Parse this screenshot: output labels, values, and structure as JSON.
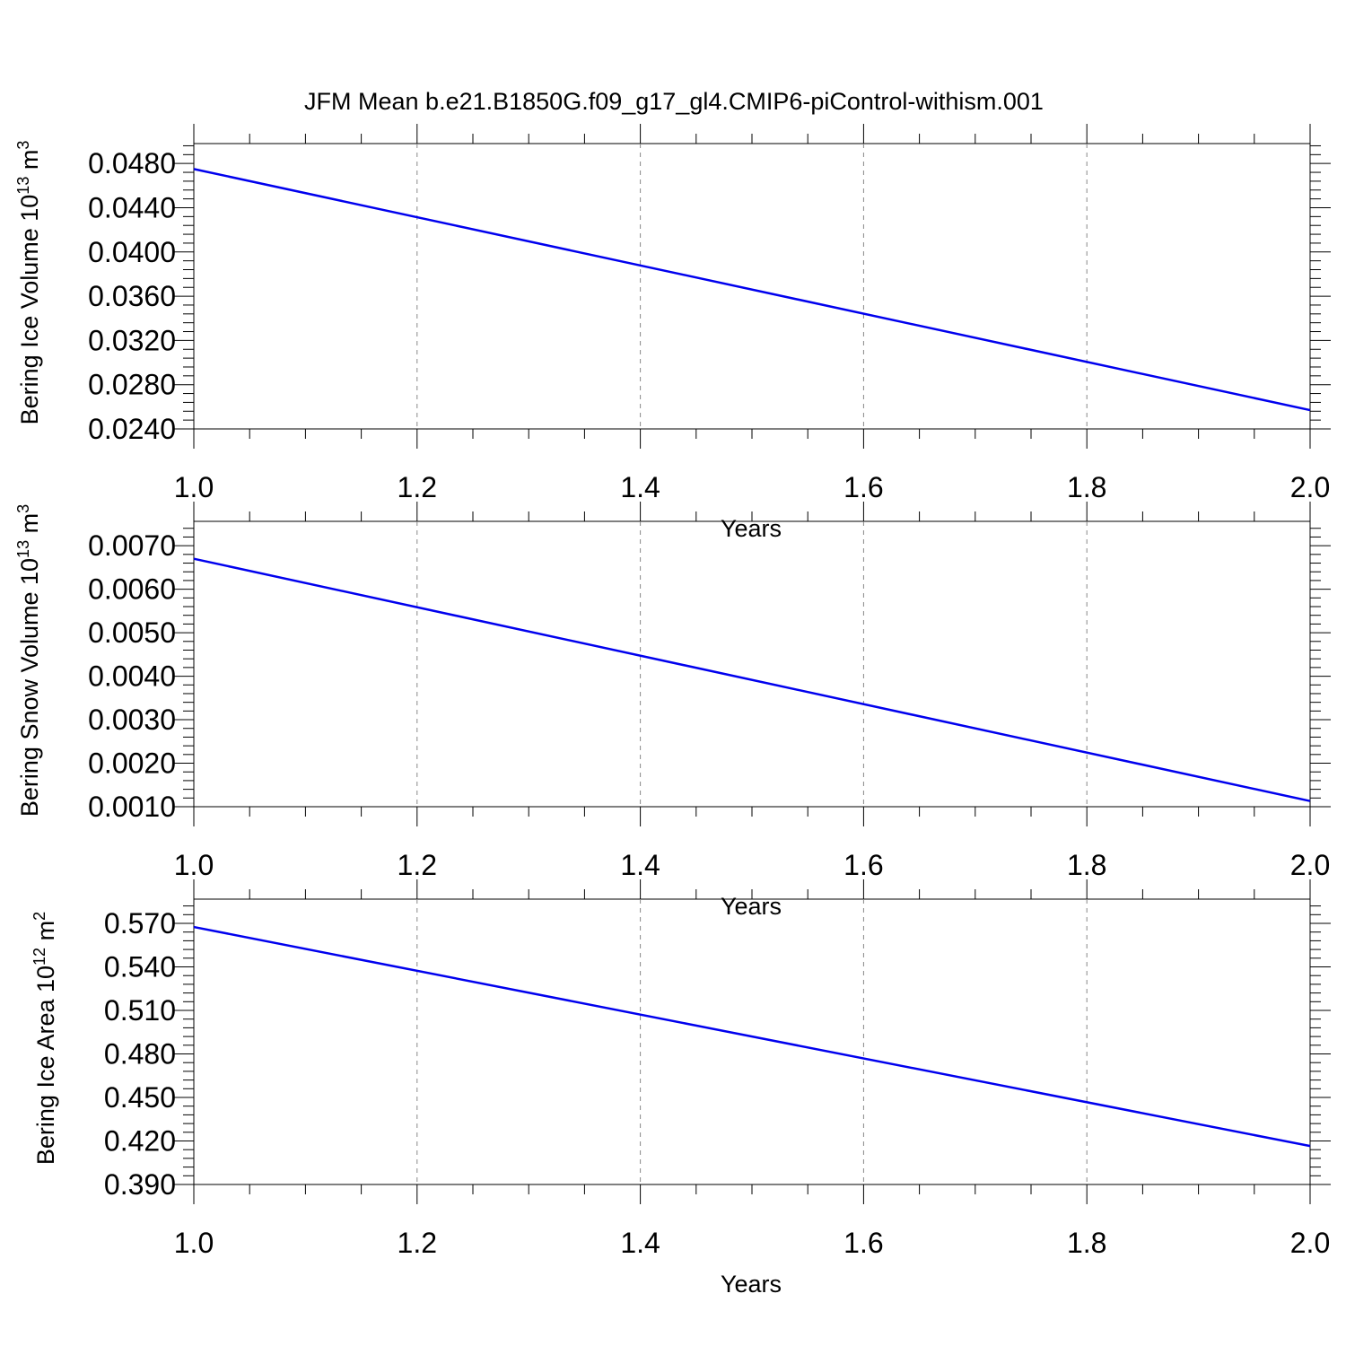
{
  "title": "JFM Mean b.e21.B1850G.f09_g17_gl4.CMIP6-piControl-withism.001",
  "colors": {
    "line": "#0000ee",
    "axis": "#000000",
    "grid": "#888888"
  },
  "chart_data": [
    {
      "type": "line",
      "ylabel": "Bering Ice Volume 10",
      "ylabel_exp": "13",
      "ylabel_unit": " m",
      "ylabel_unit_exp": "3",
      "xlabel": "Years",
      "xlim": [
        1.0,
        2.0
      ],
      "ylim": [
        0.024,
        0.0498
      ],
      "x_ticks": [
        "1.0",
        "1.2",
        "1.4",
        "1.6",
        "1.8",
        "2.0"
      ],
      "y_ticks": [
        "0.0240",
        "0.0280",
        "0.0320",
        "0.0360",
        "0.0400",
        "0.0440",
        "0.0480"
      ],
      "x_grid": "dashed vertical",
      "series": [
        {
          "x": [
            1.0,
            2.0
          ],
          "y": [
            0.0475,
            0.0257
          ]
        }
      ]
    },
    {
      "type": "line",
      "ylabel": "Bering Snow Volume 10",
      "ylabel_exp": "13",
      "ylabel_unit": " m",
      "ylabel_unit_exp": "3",
      "xlabel": "Years",
      "xlim": [
        1.0,
        2.0
      ],
      "ylim": [
        0.001,
        0.00756
      ],
      "x_ticks": [
        "1.0",
        "1.2",
        "1.4",
        "1.6",
        "1.8",
        "2.0"
      ],
      "y_ticks": [
        "0.0010",
        "0.0020",
        "0.0030",
        "0.0040",
        "0.0050",
        "0.0060",
        "0.0070"
      ],
      "x_grid": "dashed vertical",
      "series": [
        {
          "x": [
            1.0,
            2.0
          ],
          "y": [
            0.0067,
            0.00113
          ]
        }
      ]
    },
    {
      "type": "line",
      "ylabel": "Bering Ice Area 10",
      "ylabel_exp": "12",
      "ylabel_unit": " m",
      "ylabel_unit_exp": "2",
      "xlabel": "Years",
      "xlim": [
        1.0,
        2.0
      ],
      "ylim": [
        0.39,
        0.5867
      ],
      "x_ticks": [
        "1.0",
        "1.2",
        "1.4",
        "1.6",
        "1.8",
        "2.0"
      ],
      "y_ticks": [
        "0.390",
        "0.420",
        "0.450",
        "0.480",
        "0.510",
        "0.540",
        "0.570"
      ],
      "x_grid": "dashed vertical",
      "series": [
        {
          "x": [
            1.0,
            2.0
          ],
          "y": [
            0.5675,
            0.4165
          ]
        }
      ]
    }
  ]
}
